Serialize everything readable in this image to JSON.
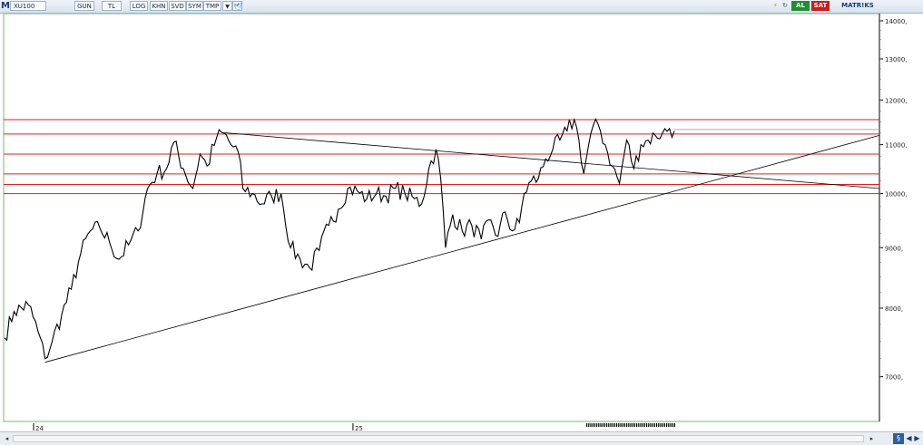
{
  "toolbar": {
    "logo": "M",
    "symbol": "XU100",
    "buttons": [
      "GUN",
      "TL",
      "LOG",
      "KHN",
      "SVD",
      "SYM",
      "TMP"
    ],
    "right_buttons": {
      "buy": "AL",
      "sell": "SAT",
      "matrix": "MATR!KS"
    },
    "colors": {
      "buy": "#1f8f2e",
      "sell": "#c81e1e"
    }
  },
  "chart_data": {
    "type": "line",
    "y_scale": "log",
    "ylim": [
      6500,
      14500
    ],
    "yticks": [
      7000,
      8000,
      9000,
      10000,
      11000,
      12000,
      13000,
      14000
    ],
    "ytick_labels": [
      "7000,",
      "8000,",
      "9000,",
      "10000,",
      "11000,",
      "12000,",
      "13000,",
      "14000,"
    ],
    "x_labels": [
      {
        "label": "24",
        "index": 8
      },
      {
        "label": "25",
        "index": 142
      }
    ],
    "n_points": 282,
    "series": [
      {
        "color": "#000000",
        "anchors": [
          {
            "i": 0,
            "v": 7550
          },
          {
            "i": 4,
            "v": 7950
          },
          {
            "i": 10,
            "v": 8050
          },
          {
            "i": 14,
            "v": 7650
          },
          {
            "i": 17,
            "v": 7250
          },
          {
            "i": 20,
            "v": 7500
          },
          {
            "i": 24,
            "v": 7900
          },
          {
            "i": 28,
            "v": 8300
          },
          {
            "i": 32,
            "v": 8900
          },
          {
            "i": 36,
            "v": 9300
          },
          {
            "i": 40,
            "v": 9350
          },
          {
            "i": 44,
            "v": 9100
          },
          {
            "i": 48,
            "v": 8800
          },
          {
            "i": 52,
            "v": 9050
          },
          {
            "i": 56,
            "v": 9300
          },
          {
            "i": 60,
            "v": 10100
          },
          {
            "i": 64,
            "v": 10400
          },
          {
            "i": 68,
            "v": 10500
          },
          {
            "i": 71,
            "v": 11050
          },
          {
            "i": 75,
            "v": 10500
          },
          {
            "i": 79,
            "v": 10100
          },
          {
            "i": 82,
            "v": 10800
          },
          {
            "i": 85,
            "v": 10550
          },
          {
            "i": 89,
            "v": 11150
          },
          {
            "i": 92,
            "v": 11250
          },
          {
            "i": 95,
            "v": 11000
          },
          {
            "i": 98,
            "v": 10850
          },
          {
            "i": 100,
            "v": 10100
          },
          {
            "i": 104,
            "v": 10000
          },
          {
            "i": 108,
            "v": 9800
          },
          {
            "i": 112,
            "v": 9950
          },
          {
            "i": 116,
            "v": 10000
          },
          {
            "i": 120,
            "v": 9000
          },
          {
            "i": 124,
            "v": 8800
          },
          {
            "i": 128,
            "v": 8650
          },
          {
            "i": 132,
            "v": 8950
          },
          {
            "i": 136,
            "v": 9400
          },
          {
            "i": 140,
            "v": 9700
          },
          {
            "i": 144,
            "v": 10100
          },
          {
            "i": 148,
            "v": 10050
          },
          {
            "i": 152,
            "v": 9900
          },
          {
            "i": 156,
            "v": 10000
          },
          {
            "i": 160,
            "v": 9950
          },
          {
            "i": 164,
            "v": 10100
          },
          {
            "i": 168,
            "v": 10000
          },
          {
            "i": 172,
            "v": 9900
          },
          {
            "i": 175,
            "v": 9800
          },
          {
            "i": 178,
            "v": 10500
          },
          {
            "i": 181,
            "v": 10900
          },
          {
            "i": 183,
            "v": 10300
          },
          {
            "i": 185,
            "v": 9000
          },
          {
            "i": 188,
            "v": 9600
          },
          {
            "i": 192,
            "v": 9300
          },
          {
            "i": 196,
            "v": 9400
          },
          {
            "i": 200,
            "v": 9150
          },
          {
            "i": 204,
            "v": 9500
          },
          {
            "i": 207,
            "v": 9200
          },
          {
            "i": 210,
            "v": 9650
          },
          {
            "i": 213,
            "v": 9300
          },
          {
            "i": 216,
            "v": 9450
          },
          {
            "i": 218,
            "v": 10000
          },
          {
            "i": 221,
            "v": 10250
          },
          {
            "i": 224,
            "v": 10300
          },
          {
            "i": 227,
            "v": 10700
          },
          {
            "i": 230,
            "v": 10900
          },
          {
            "i": 233,
            "v": 11100
          },
          {
            "i": 236,
            "v": 11300
          },
          {
            "i": 239,
            "v": 11550
          },
          {
            "i": 241,
            "v": 11100
          },
          {
            "i": 243,
            "v": 10400
          },
          {
            "i": 246,
            "v": 11250
          },
          {
            "i": 249,
            "v": 11450
          },
          {
            "i": 252,
            "v": 11000
          },
          {
            "i": 255,
            "v": 10550
          },
          {
            "i": 258,
            "v": 10200
          },
          {
            "i": 261,
            "v": 11100
          },
          {
            "i": 264,
            "v": 10500
          },
          {
            "i": 267,
            "v": 11000
          },
          {
            "i": 270,
            "v": 11100
          },
          {
            "i": 273,
            "v": 11200
          },
          {
            "i": 276,
            "v": 11250
          },
          {
            "i": 279,
            "v": 11350
          },
          {
            "i": 281,
            "v": 11300
          }
        ]
      }
    ],
    "horizontal_lines": [
      {
        "v": 11550,
        "color": "#e02020"
      },
      {
        "v": 11230,
        "color": "#e02020"
      },
      {
        "v": 10800,
        "color": "#e02020"
      },
      {
        "v": 10390,
        "color": "#e02020"
      },
      {
        "v": 10180,
        "color": "#e02020"
      },
      {
        "v": 10000,
        "color": "#e02020"
      },
      {
        "v": 11330,
        "color": "#aaaaaa",
        "from_index": 281
      }
    ],
    "trendlines": [
      {
        "from": {
          "i": 17,
          "v": 7200
        },
        "to": {
          "i": 370,
          "v": 11200
        },
        "color": "#000000"
      },
      {
        "from": {
          "i": 92,
          "v": 11260
        },
        "to": {
          "i": 370,
          "v": 10100
        },
        "color": "#000000"
      }
    ],
    "grid": false
  },
  "scrollbar": {
    "left_arrow": "◂",
    "right_arrow": "▸",
    "reset": "§"
  }
}
